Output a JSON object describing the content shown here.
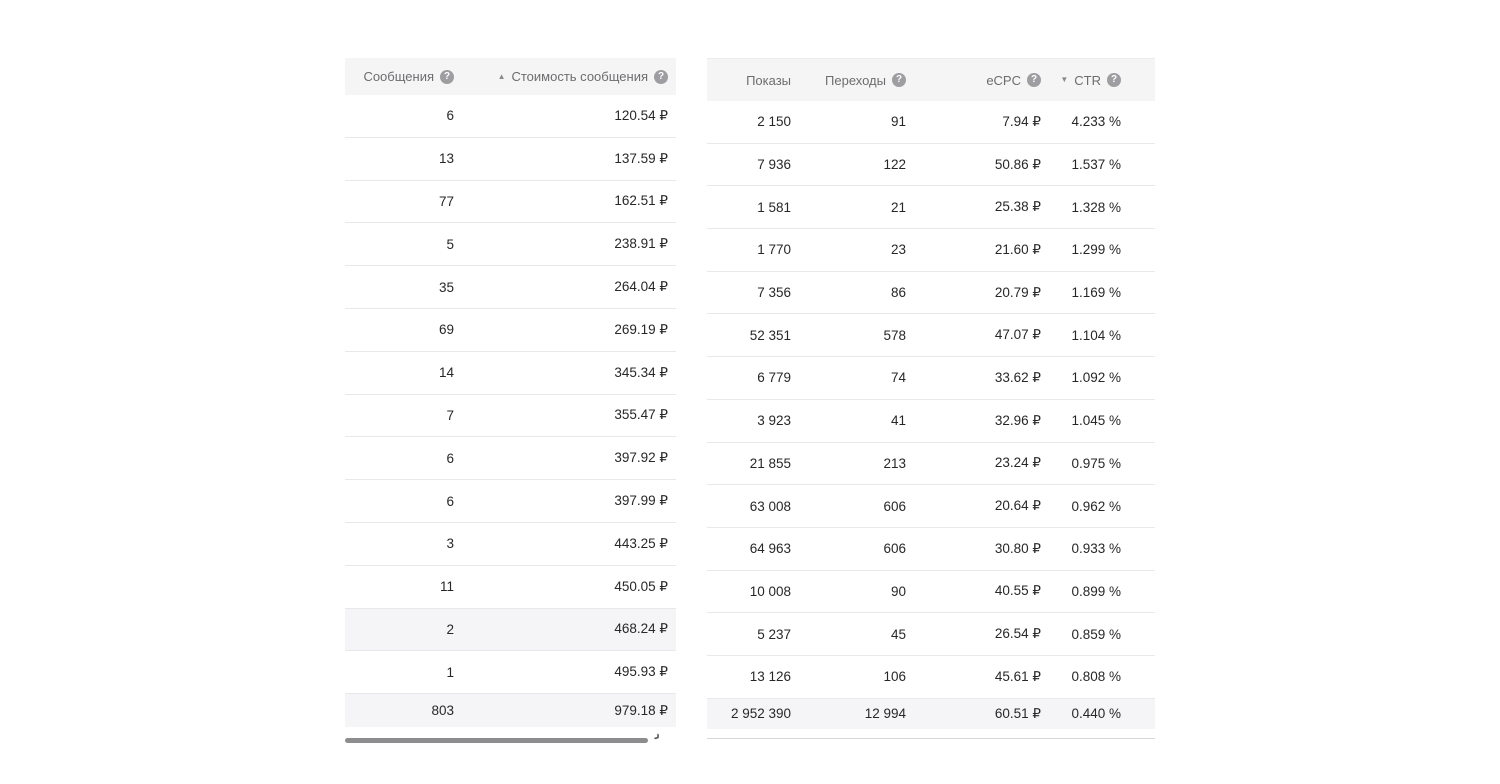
{
  "icons": {
    "help": "?",
    "sort_asc": "▲",
    "sort_desc": "▼",
    "scroll_chevron": "›"
  },
  "colors": {
    "header_bg": "#f5f5f6",
    "header_text": "#6d6d6f",
    "row_separator": "#e8e8ea",
    "value_text": "#272727",
    "total_row_bg": "#f5f5f7",
    "scrollbar": "#8d8d8f"
  },
  "left_table": {
    "columns": [
      {
        "label": "Сообщения",
        "help": true,
        "sort": null
      },
      {
        "label": "Стоимость сообщения",
        "help": true,
        "sort": "asc"
      }
    ],
    "rows": [
      [
        "6",
        "120.54 ₽"
      ],
      [
        "13",
        "137.59 ₽"
      ],
      [
        "77",
        "162.51 ₽"
      ],
      [
        "5",
        "238.91 ₽"
      ],
      [
        "35",
        "264.04 ₽"
      ],
      [
        "69",
        "269.19 ₽"
      ],
      [
        "14",
        "345.34 ₽"
      ],
      [
        "7",
        "355.47 ₽"
      ],
      [
        "6",
        "397.92 ₽"
      ],
      [
        "6",
        "397.99 ₽"
      ],
      [
        "3",
        "443.25 ₽"
      ],
      [
        "11",
        "450.05 ₽"
      ],
      [
        "2",
        "468.24 ₽"
      ],
      [
        "1",
        "495.93 ₽"
      ]
    ],
    "highlighted_row_index": 12,
    "total_row": [
      "803",
      "979.18 ₽"
    ]
  },
  "right_table": {
    "columns": [
      {
        "label": "Показы",
        "help": false,
        "sort": null
      },
      {
        "label": "Переходы",
        "help": true,
        "sort": null
      },
      {
        "label": "eCPC",
        "help": true,
        "sort": null
      },
      {
        "label": "CTR",
        "help": true,
        "sort": "desc"
      }
    ],
    "rows": [
      [
        "2 150",
        "91",
        "7.94 ₽",
        "4.233 %"
      ],
      [
        "7 936",
        "122",
        "50.86 ₽",
        "1.537 %"
      ],
      [
        "1 581",
        "21",
        "25.38 ₽",
        "1.328 %"
      ],
      [
        "1 770",
        "23",
        "21.60 ₽",
        "1.299 %"
      ],
      [
        "7 356",
        "86",
        "20.79 ₽",
        "1.169 %"
      ],
      [
        "52 351",
        "578",
        "47.07 ₽",
        "1.104 %"
      ],
      [
        "6 779",
        "74",
        "33.62 ₽",
        "1.092 %"
      ],
      [
        "3 923",
        "41",
        "32.96 ₽",
        "1.045 %"
      ],
      [
        "21 855",
        "213",
        "23.24 ₽",
        "0.975 %"
      ],
      [
        "63 008",
        "606",
        "20.64 ₽",
        "0.962 %"
      ],
      [
        "64 963",
        "606",
        "30.80 ₽",
        "0.933 %"
      ],
      [
        "10 008",
        "90",
        "40.55 ₽",
        "0.899 %"
      ],
      [
        "5 237",
        "45",
        "26.54 ₽",
        "0.859 %"
      ],
      [
        "13 126",
        "106",
        "45.61 ₽",
        "0.808 %"
      ]
    ],
    "highlighted_row_index": -1,
    "total_row": [
      "2 952 390",
      "12 994",
      "60.51 ₽",
      "0.440 %"
    ]
  }
}
